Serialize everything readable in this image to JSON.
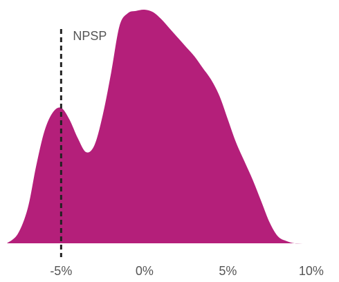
{
  "chart_data": {
    "type": "area",
    "title": "",
    "xlabel": "",
    "ylabel": "",
    "x_tick_labels": [
      "-5%",
      "0%",
      "5%",
      "10%"
    ],
    "x_ticks": [
      -5,
      0,
      5,
      10
    ],
    "xlim": [
      -8.25,
      11.25
    ],
    "ylim": [
      0,
      1
    ],
    "grid": false,
    "legend": "none",
    "series": [
      {
        "color": "#b41f7a",
        "x": [
          -8.25,
          -7.6,
          -7.0,
          -6.5,
          -6.0,
          -5.5,
          -5.0,
          -4.5,
          -4.0,
          -3.5,
          -3.0,
          -2.5,
          -2.0,
          -1.5,
          -1.0,
          -0.5,
          0.0,
          0.5,
          1.0,
          1.5,
          2.0,
          2.5,
          3.0,
          3.5,
          4.0,
          4.5,
          5.0,
          5.5,
          6.0,
          6.5,
          7.0,
          7.5,
          8.0,
          8.5,
          9.0,
          9.5,
          10.0,
          10.5,
          11.0,
          11.25
        ],
        "y": [
          0.0,
          0.04,
          0.15,
          0.33,
          0.48,
          0.56,
          0.58,
          0.53,
          0.45,
          0.39,
          0.42,
          0.55,
          0.73,
          0.93,
          0.985,
          0.995,
          1.0,
          0.99,
          0.96,
          0.92,
          0.88,
          0.84,
          0.8,
          0.75,
          0.7,
          0.63,
          0.53,
          0.43,
          0.35,
          0.27,
          0.18,
          0.09,
          0.03,
          0.01,
          0.0,
          0.0,
          0.0,
          0.0,
          0.0,
          0.0
        ]
      }
    ],
    "reference_line": {
      "x": -5.0,
      "label": "NPSP",
      "style": "dashed",
      "color": "#222222"
    }
  }
}
